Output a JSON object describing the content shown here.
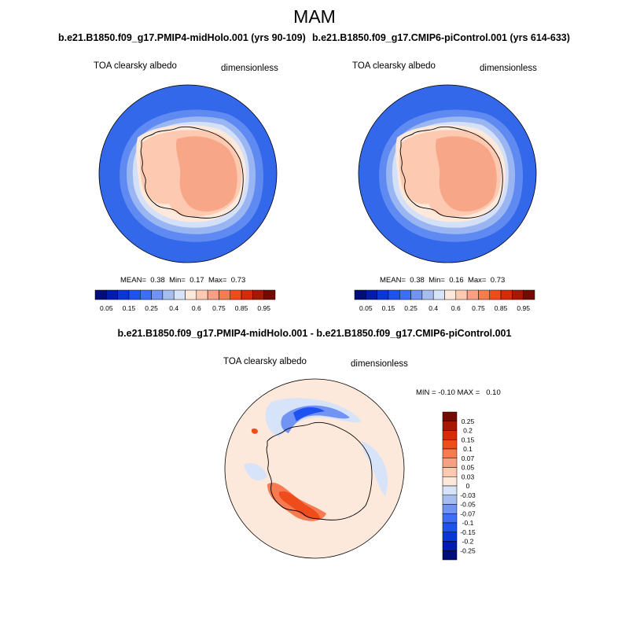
{
  "season": "MAM",
  "panels": [
    {
      "title": "b.e21.B1850.f09_g17.PMIP4-midHolo.001 (yrs 90-109)",
      "variable": "TOA clearsky albedo",
      "units": "dimensionless",
      "stats": {
        "mean_label": "MEAN=",
        "mean": "0.38",
        "min_label": "Min=",
        "min": "0.17",
        "max_label": "Max=",
        "max": "0.73"
      }
    },
    {
      "title": "b.e21.B1850.f09_g17.CMIP6-piControl.001 (yrs 614-633)",
      "variable": "TOA clearsky albedo",
      "units": "dimensionless",
      "stats": {
        "mean_label": "MEAN=",
        "mean": "0.38",
        "min_label": "Min=",
        "min": "0.16",
        "max_label": "Max=",
        "max": "0.73"
      }
    }
  ],
  "diff_panel": {
    "title": "b.e21.B1850.f09_g17.PMIP4-midHolo.001 - b.e21.B1850.f09_g17.CMIP6-piControl.001",
    "variable": "TOA clearsky albedo",
    "units": "dimensionless",
    "minmax": {
      "min_label": "MIN =",
      "min": "-0.10",
      "max_label": "MAX =",
      "max": "0.10"
    }
  },
  "colorbar_abs": {
    "colors": [
      "#000e7a",
      "#001bb0",
      "#0a36d8",
      "#1d52f0",
      "#3d6ef5",
      "#7194f3",
      "#a6bdf0",
      "#d6e3f8",
      "#fde9dc",
      "#fdc9b0",
      "#f8a084",
      "#f77a50",
      "#ef4c1c",
      "#d62a08",
      "#a81702",
      "#750b00"
    ],
    "labels": [
      "0.05",
      "0.15",
      "0.25",
      "0.4",
      "0.6",
      "0.75",
      "0.85",
      "0.95"
    ]
  },
  "colorbar_diff": {
    "colors": [
      "#000e7a",
      "#001bb0",
      "#0a36d8",
      "#1d52f0",
      "#3d6ef5",
      "#7194f3",
      "#a6bdf0",
      "#d6e3f8",
      "#fde9dc",
      "#fdc9b0",
      "#f8a084",
      "#f77a50",
      "#ef4c1c",
      "#d62a08",
      "#a81702",
      "#750b00"
    ],
    "labels": [
      "0.25",
      "0.2",
      "0.15",
      "0.1",
      "0.07",
      "0.05",
      "0.03",
      "0",
      "-0.03",
      "-0.05",
      "-0.07",
      "-0.1",
      "-0.15",
      "-0.2",
      "-0.25"
    ]
  },
  "map_colors": {
    "ocean": "#3468ea",
    "band_mid": "#5f8af2",
    "band_light": "#9ab6f2",
    "band_pale": "#d3e0f7",
    "ice_edge": "#fde9dc",
    "land_low": "#fdc9b0",
    "land_high": "#f8a688",
    "diff_bg": "#fde9dc",
    "diff_neg_pale": "#d6e3f8",
    "diff_neg": "#7194f3",
    "diff_neg_strong": "#1d52f0",
    "diff_pos": "#f77a50",
    "diff_pos_strong": "#ef4c1c"
  }
}
